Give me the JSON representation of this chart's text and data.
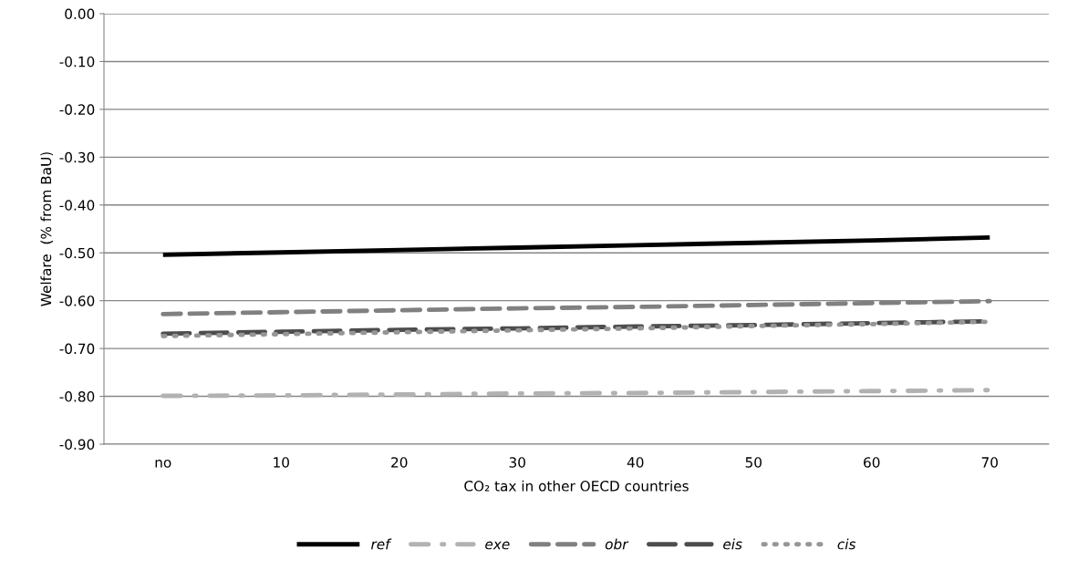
{
  "chart_data": {
    "type": "line",
    "xlabel": "CO₂ tax in other OECD countries",
    "ylabel": "Welfare  (% from BaU)",
    "categories": [
      "no",
      "10",
      "20",
      "30",
      "40",
      "50",
      "60",
      "70"
    ],
    "series": [
      {
        "name": "ref",
        "color": "#000000",
        "line_style": "solid",
        "values": [
          -0.504,
          -0.499,
          -0.494,
          -0.489,
          -0.484,
          -0.479,
          -0.474,
          -0.468
        ]
      },
      {
        "name": "exe",
        "color": "#b2b2b2",
        "line_style": "dashdot",
        "values": [
          -0.799,
          -0.798,
          -0.796,
          -0.794,
          -0.793,
          -0.791,
          -0.789,
          -0.787
        ]
      },
      {
        "name": "obr",
        "color": "#808080",
        "line_style": "dashed",
        "values": [
          -0.628,
          -0.624,
          -0.62,
          -0.616,
          -0.613,
          -0.609,
          -0.605,
          -0.601
        ]
      },
      {
        "name": "eis",
        "color": "#4d4d4d",
        "line_style": "dashed",
        "values": [
          -0.669,
          -0.665,
          -0.661,
          -0.658,
          -0.654,
          -0.651,
          -0.647,
          -0.643
        ]
      },
      {
        "name": "cis",
        "color": "#969696",
        "line_style": "dotted",
        "values": [
          -0.674,
          -0.67,
          -0.666,
          -0.662,
          -0.658,
          -0.653,
          -0.649,
          -0.644
        ]
      }
    ],
    "ylim": [
      -0.9,
      0
    ],
    "yticks": [
      {
        "value": -0.9,
        "label": "-0.90"
      },
      {
        "value": -0.8,
        "label": "-0.80"
      },
      {
        "value": -0.7,
        "label": "-0.70"
      },
      {
        "value": -0.6,
        "label": "-0.60"
      },
      {
        "value": -0.5,
        "label": "-0.50"
      },
      {
        "value": -0.4,
        "label": "-0.40"
      },
      {
        "value": -0.3,
        "label": "-0.30"
      },
      {
        "value": -0.2,
        "label": "-0.20"
      },
      {
        "value": -0.1,
        "label": "-0.10"
      },
      {
        "value": 0,
        "label": "0.00"
      }
    ],
    "grid": "y",
    "legend": "bottom"
  }
}
